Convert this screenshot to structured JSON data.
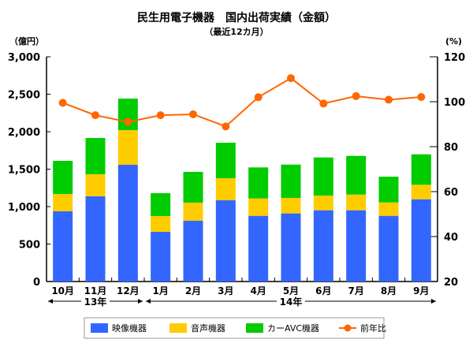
{
  "chart_data": {
    "type": "bar",
    "stacked": true,
    "title": "民生用電子機器　国内出荷実績（金額）",
    "subtitle": "（最近12カ月）",
    "ylabel": "（億円）",
    "y2label": "(%)",
    "ylim": [
      0,
      3000
    ],
    "yticks": [
      "0",
      "500",
      "1,000",
      "1,500",
      "2,000",
      "2,500",
      "3,000"
    ],
    "y2lim": [
      20,
      120
    ],
    "y2ticks": [
      "20",
      "40",
      "60",
      "80",
      "100",
      "120"
    ],
    "categories": [
      "10月",
      "11月",
      "12月",
      "1月",
      "2月",
      "3月",
      "4月",
      "5月",
      "6月",
      "7月",
      "8月",
      "9月"
    ],
    "year_groups": [
      {
        "label": "13年",
        "from": 0,
        "to": 2
      },
      {
        "label": "14年",
        "from": 3,
        "to": 11
      }
    ],
    "series": [
      {
        "name": "映像機器",
        "color": "#3366ff",
        "values": [
          937,
          1137,
          1558,
          663,
          811,
          1084,
          877,
          909,
          951,
          951,
          877,
          1098
        ]
      },
      {
        "name": "音声機器",
        "color": "#ffcc00",
        "values": [
          231,
          295,
          463,
          211,
          242,
          295,
          232,
          207,
          196,
          210,
          179,
          193
        ]
      },
      {
        "name": "カーAVC機器",
        "color": "#00cc00",
        "values": [
          442,
          484,
          421,
          305,
          410,
          474,
          414,
          445,
          509,
          516,
          344,
          407
        ]
      }
    ],
    "line_series": {
      "name": "前年比",
      "color": "#ff6600",
      "axis": "right",
      "values": [
        99.5,
        94,
        91,
        94,
        94.4,
        89,
        102,
        110.5,
        99.2,
        102.5,
        100.9,
        102.1
      ]
    },
    "legend_position": "bottom"
  }
}
